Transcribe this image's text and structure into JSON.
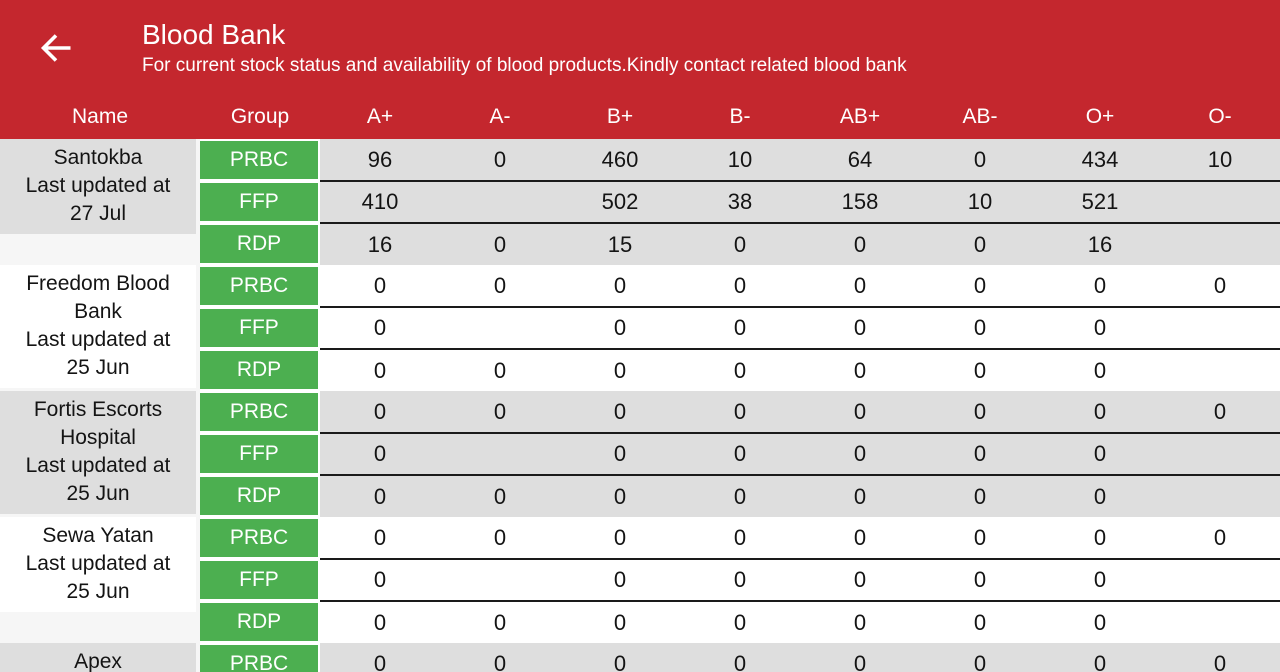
{
  "header": {
    "title": "Blood Bank",
    "subtitle": "For current stock status and availability of blood products.Kindly contact related blood bank",
    "back_icon": "arrow-left"
  },
  "colors": {
    "app_bar_red": "#c4272e",
    "group_badge_green": "#4caf50",
    "row_shade_gray": "#dedede",
    "row_shade_white": "#ffffff",
    "row_divider_dark": "#1a1a1a",
    "header_text": "#ffffff",
    "cell_text": "#141414"
  },
  "table": {
    "columns": [
      "Name",
      "Group",
      "A+",
      "A-",
      "B+",
      "B-",
      "AB+",
      "AB-",
      "O+",
      "O-"
    ],
    "banks": [
      {
        "name": "Santokba",
        "updated": "Last updated at\n27 Jul",
        "rows": [
          {
            "group": "PRBC",
            "values": [
              "96",
              "0",
              "460",
              "10",
              "64",
              "0",
              "434",
              "10"
            ]
          },
          {
            "group": "FFP",
            "values": [
              "410",
              "",
              "502",
              "38",
              "158",
              "10",
              "521",
              ""
            ]
          },
          {
            "group": "RDP",
            "values": [
              "16",
              "0",
              "15",
              "0",
              "0",
              "0",
              "16",
              ""
            ]
          }
        ]
      },
      {
        "name": "Freedom Blood\nBank",
        "updated": "Last updated at\n25 Jun",
        "rows": [
          {
            "group": "PRBC",
            "values": [
              "0",
              "0",
              "0",
              "0",
              "0",
              "0",
              "0",
              "0"
            ]
          },
          {
            "group": "FFP",
            "values": [
              "0",
              "",
              "0",
              "0",
              "0",
              "0",
              "0",
              ""
            ]
          },
          {
            "group": "RDP",
            "values": [
              "0",
              "0",
              "0",
              "0",
              "0",
              "0",
              "0",
              ""
            ]
          }
        ]
      },
      {
        "name": "Fortis Escorts\nHospital",
        "updated": "Last updated at\n25 Jun",
        "rows": [
          {
            "group": "PRBC",
            "values": [
              "0",
              "0",
              "0",
              "0",
              "0",
              "0",
              "0",
              "0"
            ]
          },
          {
            "group": "FFP",
            "values": [
              "0",
              "",
              "0",
              "0",
              "0",
              "0",
              "0",
              ""
            ]
          },
          {
            "group": "RDP",
            "values": [
              "0",
              "0",
              "0",
              "0",
              "0",
              "0",
              "0",
              ""
            ]
          }
        ]
      },
      {
        "name": "Sewa Yatan",
        "updated": "Last updated at\n25 Jun",
        "rows": [
          {
            "group": "PRBC",
            "values": [
              "0",
              "0",
              "0",
              "0",
              "0",
              "0",
              "0",
              "0"
            ]
          },
          {
            "group": "FFP",
            "values": [
              "0",
              "",
              "0",
              "0",
              "0",
              "0",
              "0",
              ""
            ]
          },
          {
            "group": "RDP",
            "values": [
              "0",
              "0",
              "0",
              "0",
              "0",
              "0",
              "0",
              ""
            ]
          }
        ]
      },
      {
        "name": "Apex",
        "updated": "",
        "rows": [
          {
            "group": "PRBC",
            "values": [
              "0",
              "0",
              "0",
              "0",
              "0",
              "0",
              "0",
              "0"
            ]
          }
        ]
      }
    ]
  }
}
